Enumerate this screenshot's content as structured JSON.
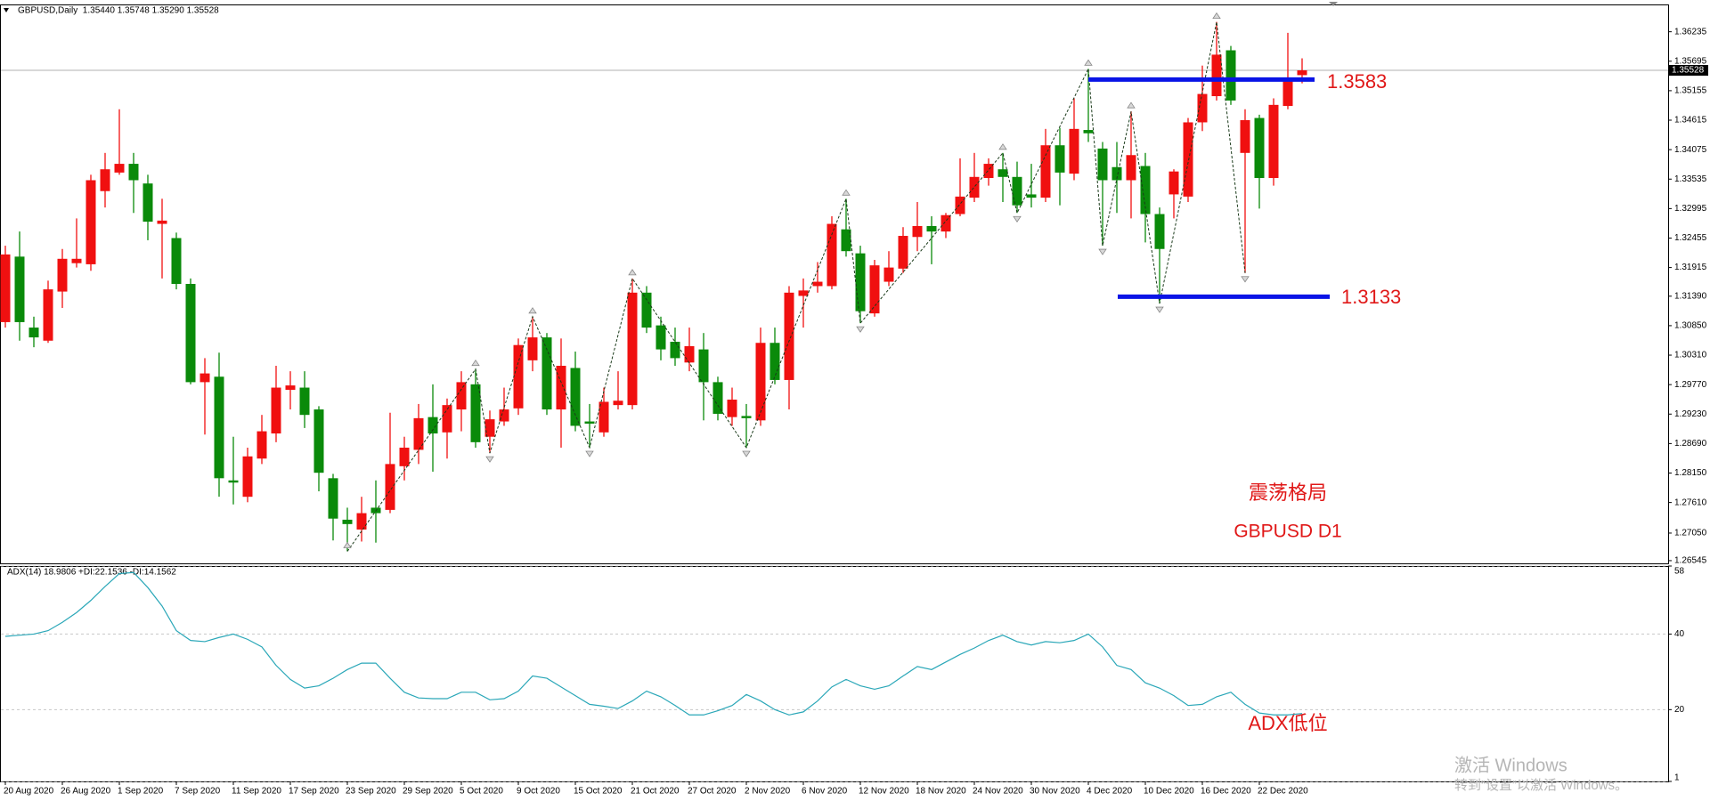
{
  "chart_data": [
    {
      "type": "candlestick",
      "title": "GBPUSD,Daily  1.35440 1.35748 1.35290 1.35528",
      "categories": [
        "20 Aug 2020",
        null,
        null,
        null,
        "26 Aug 2020",
        null,
        null,
        null,
        "1 Sep 2020",
        null,
        null,
        null,
        "7 Sep 2020",
        null,
        null,
        null,
        "11 Sep 2020",
        null,
        null,
        null,
        "17 Sep 2020",
        null,
        null,
        null,
        "23 Sep 2020",
        null,
        null,
        null,
        "29 Sep 2020",
        null,
        null,
        null,
        "5 Oct 2020",
        null,
        null,
        null,
        "9 Oct 2020",
        null,
        null,
        null,
        "15 Oct 2020",
        null,
        null,
        null,
        "21 Oct 2020",
        null,
        null,
        null,
        "27 Oct 2020",
        null,
        null,
        null,
        "2 Nov 2020",
        null,
        null,
        null,
        "6 Nov 2020",
        null,
        null,
        null,
        "12 Nov 2020",
        null,
        null,
        null,
        "18 Nov 2020",
        null,
        null,
        null,
        "24 Nov 2020",
        null,
        null,
        null,
        "30 Nov 2020",
        null,
        null,
        null,
        "4 Dec 2020",
        null,
        null,
        null,
        "10 Dec 2020",
        null,
        null,
        null,
        "16 Dec 2020",
        null,
        null,
        null,
        "22 Dec 2020",
        null,
        null,
        null
      ],
      "open": [
        1.30915,
        1.32115,
        1.30815,
        1.30575,
        1.31475,
        1.31995,
        1.31975,
        1.33315,
        1.33655,
        1.33815,
        1.33455,
        1.32715,
        1.32455,
        1.31615,
        1.29815,
        1.29915,
        1.28015,
        1.27715,
        1.28415,
        1.28875,
        1.29675,
        1.29715,
        1.29315,
        1.28055,
        1.27295,
        1.27115,
        1.27515,
        1.27475,
        1.28275,
        1.28575,
        1.29175,
        1.28895,
        1.29315,
        1.29775,
        1.28815,
        1.29095,
        1.29335,
        1.30215,
        1.30635,
        1.29315,
        1.30075,
        1.29095,
        1.28895,
        1.29395,
        1.29395,
        1.31455,
        1.30855,
        1.30555,
        1.30175,
        1.30415,
        1.29815,
        1.29175,
        1.29195,
        1.29115,
        1.30535,
        1.29855,
        1.31395,
        1.31575,
        1.31575,
        1.32615,
        1.32175,
        1.31075,
        1.31655,
        1.31895,
        1.32475,
        1.32675,
        1.32575,
        1.32895,
        1.33195,
        1.33555,
        1.33715,
        1.33575,
        1.33255,
        1.33195,
        1.34155,
        1.33635,
        1.34435,
        1.34095,
        1.33755,
        1.33515,
        1.33775,
        1.32895,
        1.33255,
        1.33215,
        1.34575,
        1.35055,
        1.35895,
        1.34015,
        1.34655,
        1.33555,
        1.34875,
        1.3544
      ],
      "high": [
        1.32315,
        1.32575,
        1.31015,
        1.31675,
        1.32255,
        1.32815,
        1.33615,
        1.34015,
        1.34815,
        1.34015,
        1.33615,
        1.33175,
        1.32555,
        1.31715,
        1.30255,
        1.30355,
        1.28815,
        1.28615,
        1.29215,
        1.30115,
        1.30015,
        1.30015,
        1.29375,
        1.28135,
        1.27515,
        1.27715,
        1.28015,
        1.29255,
        1.28815,
        1.29415,
        1.29775,
        1.29515,
        1.30015,
        1.30055,
        1.29295,
        1.29715,
        1.30615,
        1.31015,
        1.30715,
        1.30615,
        1.30375,
        1.29415,
        1.29715,
        1.30015,
        1.31715,
        1.31575,
        1.31015,
        1.30815,
        1.30815,
        1.30715,
        1.29915,
        1.29715,
        1.29415,
        1.30815,
        1.30815,
        1.31575,
        1.31715,
        1.32015,
        1.32855,
        1.33175,
        1.32315,
        1.32055,
        1.32215,
        1.32655,
        1.33115,
        1.32855,
        1.32915,
        1.33915,
        1.34015,
        1.33915,
        1.34015,
        1.33855,
        1.33815,
        1.34455,
        1.34475,
        1.35015,
        1.35555,
        1.34215,
        1.34215,
        1.34775,
        1.34015,
        1.33015,
        1.33715,
        1.34655,
        1.35615,
        1.36415,
        1.35975,
        1.34815,
        1.34715,
        1.35015,
        1.36215,
        1.35748
      ],
      "low": [
        1.30815,
        1.30575,
        1.30455,
        1.30535,
        1.31175,
        1.31915,
        1.31855,
        1.33015,
        1.33615,
        1.32915,
        1.32415,
        1.31715,
        1.31515,
        1.29775,
        1.28855,
        1.27715,
        1.27575,
        1.27615,
        1.28315,
        1.28715,
        1.29315,
        1.28975,
        1.27815,
        1.26915,
        1.26715,
        1.26895,
        1.26875,
        1.27415,
        1.28015,
        1.28315,
        1.28175,
        1.28415,
        1.28915,
        1.28615,
        1.28515,
        1.29015,
        1.29215,
        1.30015,
        1.29215,
        1.28615,
        1.28915,
        1.28615,
        1.28815,
        1.29315,
        1.29315,
        1.30715,
        1.30215,
        1.30115,
        1.30015,
        1.29115,
        1.29115,
        1.29015,
        1.28615,
        1.29015,
        1.29775,
        1.29315,
        1.30815,
        1.31455,
        1.31515,
        1.32115,
        1.30895,
        1.31015,
        1.31575,
        1.31815,
        1.32215,
        1.31975,
        1.32455,
        1.32855,
        1.33115,
        1.33415,
        1.33115,
        1.32915,
        1.33015,
        1.33115,
        1.33055,
        1.33515,
        1.34215,
        1.32315,
        1.32915,
        1.32815,
        1.32375,
        1.31255,
        1.32815,
        1.33115,
        1.34415,
        1.34975,
        1.34895,
        1.31815,
        1.32995,
        1.33415,
        1.34815,
        1.3529
      ],
      "close": [
        1.32155,
        1.30915,
        1.30635,
        1.31515,
        1.32075,
        1.32075,
        1.33515,
        1.33715,
        1.33815,
        1.33515,
        1.32755,
        1.32775,
        1.31615,
        1.29815,
        1.29975,
        1.28055,
        1.27975,
        1.28455,
        1.28915,
        1.29715,
        1.29755,
        1.29215,
        1.28155,
        1.27315,
        1.27215,
        1.27415,
        1.27415,
        1.28315,
        1.28615,
        1.29155,
        1.28875,
        1.29395,
        1.29815,
        1.28715,
        1.29135,
        1.29315,
        1.30495,
        1.30635,
        1.29315,
        1.30115,
        1.29015,
        1.29055,
        1.29455,
        1.29475,
        1.31455,
        1.30815,
        1.30415,
        1.30255,
        1.30475,
        1.29815,
        1.29235,
        1.29495,
        1.29155,
        1.30535,
        1.29855,
        1.31455,
        1.31495,
        1.31655,
        1.32715,
        1.32215,
        1.31115,
        1.31955,
        1.31915,
        1.32495,
        1.32675,
        1.32575,
        1.32875,
        1.33215,
        1.33575,
        1.33815,
        1.33575,
        1.33055,
        1.33195,
        1.34155,
        1.33655,
        1.34455,
        1.34375,
        1.33515,
        1.33515,
        1.33975,
        1.32895,
        1.32255,
        1.33675,
        1.34575,
        1.35095,
        1.35815,
        1.34975,
        1.34615,
        1.33555,
        1.34895,
        1.35375,
        1.35528
      ],
      "up_color": "#f01010",
      "down_color": "#0a8a0a",
      "ylim": [
        1.26495,
        1.36735
      ],
      "yticks": [
        1.36235,
        1.35695,
        1.35155,
        1.34615,
        1.34075,
        1.33535,
        1.32995,
        1.32455,
        1.31915,
        {
          "value": 1.3139,
          "label": "1.31390"
        },
        {
          "value": 1.3085,
          "label": "1.30850"
        },
        {
          "value": 1.3031,
          "label": "1.30310"
        },
        {
          "value": 1.2977,
          "label": "1.29770"
        },
        {
          "value": 1.2923,
          "label": "1.29230"
        },
        {
          "value": 1.2869,
          "label": "1.28690"
        },
        {
          "value": 1.2815,
          "label": "1.28150"
        },
        {
          "value": 1.2761,
          "label": "1.27610"
        },
        {
          "value": 1.2705,
          "label": "1.27050"
        },
        1.26545
      ],
      "bid": 1.35528,
      "zigzag": {
        "x": [
          24,
          33,
          34,
          37,
          41,
          44,
          52,
          59,
          60,
          70,
          71,
          76,
          77,
          79,
          81,
          85,
          87
        ],
        "values": [
          1.26715,
          1.30055,
          1.28515,
          1.31015,
          1.28615,
          1.31715,
          1.28615,
          1.33175,
          1.30895,
          1.34015,
          1.32915,
          1.35555,
          1.32315,
          1.34775,
          1.31255,
          1.36415,
          1.31815
        ]
      },
      "levels": [
        1.3536,
        1.3138
      ],
      "level_color": "#0a14e6",
      "annotations": [
        "1.3583",
        "1.3133",
        "震荡格局",
        "GBPUSD D1",
        "ADX低位"
      ],
      "annotation_color": "#e01818",
      "watermark": [
        "激活 Windows",
        "转到“设置”以激活 Windows。"
      ]
    },
    {
      "type": "line",
      "title": "ADX(14) 18.9806 +DI:22.1536 -DI:14.1562",
      "values": [
        39.4,
        39.7,
        40.0,
        40.9,
        43.1,
        45.7,
        48.9,
        52.6,
        56.0,
        56.3,
        52.3,
        47.4,
        40.9,
        38.3,
        38.0,
        39.1,
        40.0,
        38.6,
        36.6,
        31.7,
        28.0,
        25.7,
        26.3,
        28.3,
        30.6,
        32.3,
        32.3,
        28.3,
        24.6,
        23.1,
        22.9,
        22.9,
        24.6,
        24.6,
        22.6,
        22.9,
        24.9,
        28.9,
        28.3,
        26.0,
        23.7,
        21.4,
        20.9,
        20.3,
        22.3,
        24.9,
        23.4,
        21.1,
        18.6,
        18.6,
        19.7,
        21.1,
        24.0,
        22.3,
        20.0,
        18.6,
        19.4,
        22.3,
        26.0,
        28.0,
        26.3,
        25.4,
        26.3,
        28.9,
        31.4,
        30.6,
        32.6,
        34.6,
        36.3,
        38.3,
        39.7,
        38.0,
        37.1,
        38.0,
        37.7,
        38.3,
        40.0,
        36.6,
        31.7,
        30.6,
        27.1,
        25.7,
        23.7,
        21.1,
        21.4,
        23.4,
        24.6,
        21.4,
        19.1,
        18.6,
        18.6,
        18.9806
      ],
      "color": "#2aa7b8",
      "ylim": [
        1,
        58
      ],
      "yticks": [
        58,
        40,
        20,
        1
      ],
      "grid": true
    }
  ]
}
